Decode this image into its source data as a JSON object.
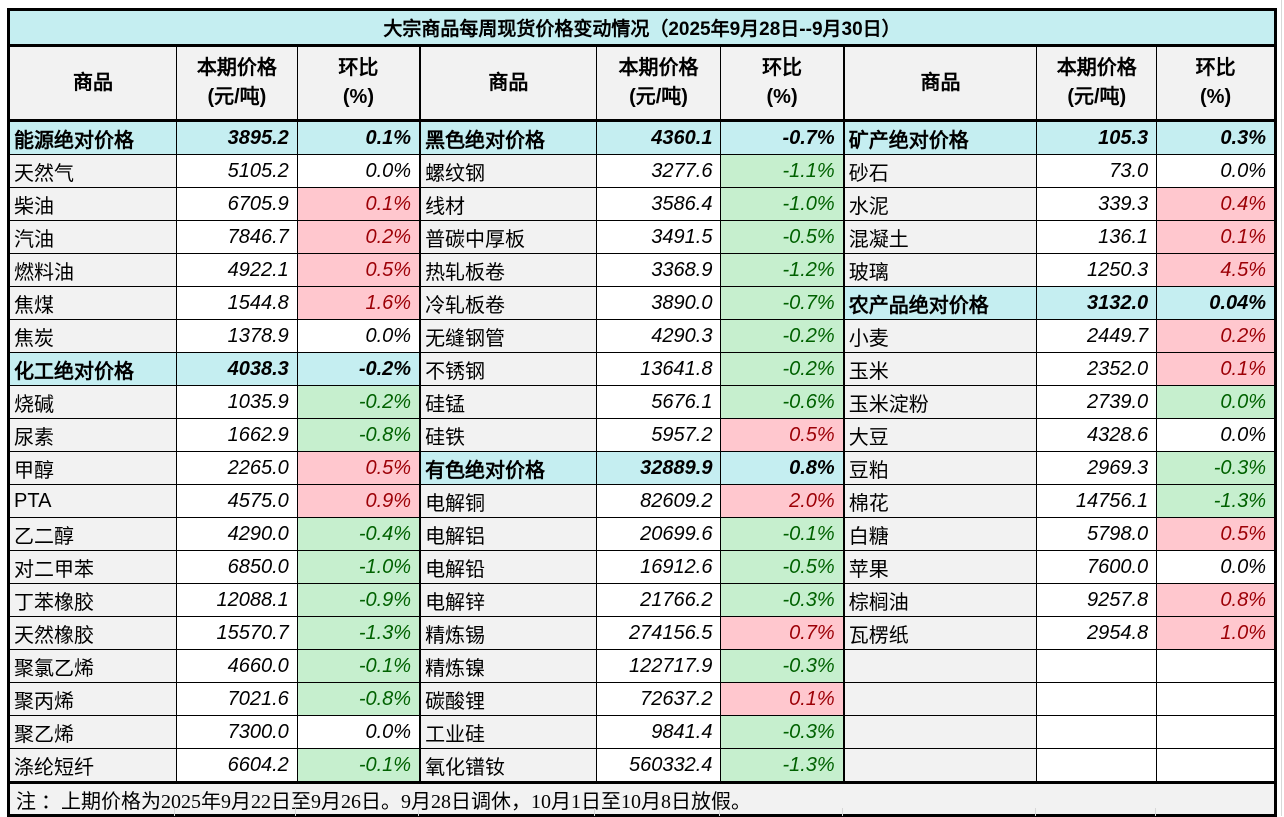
{
  "chart_data": {
    "type": "table",
    "title": "大宗商品每周现货价格变动情况（2025年9月28日--9月30日）",
    "note": "注 ：上期价格为2025年9月22日至9月26日。9月28日调休，10月1日至10月8日放假。",
    "columns": {
      "commodity": "商品",
      "price_l1": "本期价格",
      "price_l2": "(元/吨)",
      "pct_l1": "环比",
      "pct_l2": "(%)"
    },
    "legend": {
      "up_style": "positive change: pink background, dark red text",
      "down_style": "negative change: green background, dark green text",
      "section_style": "aggregate index rows: cyan background, bold"
    },
    "groups": [
      {
        "rows": [
          {
            "name": "能源绝对价格",
            "price": "3895.2",
            "pct": "0.1%",
            "type": "section"
          },
          {
            "name": "天然气",
            "price": "5105.2",
            "pct": "0.0%",
            "style": "flat"
          },
          {
            "name": "柴油",
            "price": "6705.9",
            "pct": "0.1%",
            "style": "up"
          },
          {
            "name": "汽油",
            "price": "7846.7",
            "pct": "0.2%",
            "style": "up"
          },
          {
            "name": "燃料油",
            "price": "4922.1",
            "pct": "0.5%",
            "style": "up"
          },
          {
            "name": "焦煤",
            "price": "1544.8",
            "pct": "1.6%",
            "style": "up"
          },
          {
            "name": "焦炭",
            "price": "1378.9",
            "pct": "0.0%",
            "style": "flat"
          },
          {
            "name": "化工绝对价格",
            "price": "4038.3",
            "pct": "-0.2%",
            "type": "section"
          },
          {
            "name": "烧碱",
            "price": "1035.9",
            "pct": "-0.2%",
            "style": "down"
          },
          {
            "name": "尿素",
            "price": "1662.9",
            "pct": "-0.8%",
            "style": "down"
          },
          {
            "name": "甲醇",
            "price": "2265.0",
            "pct": "0.5%",
            "style": "up"
          },
          {
            "name": "PTA",
            "price": "4575.0",
            "pct": "0.9%",
            "style": "up"
          },
          {
            "name": "乙二醇",
            "price": "4290.0",
            "pct": "-0.4%",
            "style": "down"
          },
          {
            "name": "对二甲苯",
            "price": "6850.0",
            "pct": "-1.0%",
            "style": "down"
          },
          {
            "name": "丁苯橡胶",
            "price": "12088.1",
            "pct": "-0.9%",
            "style": "down"
          },
          {
            "name": "天然橡胶",
            "price": "15570.7",
            "pct": "-1.3%",
            "style": "down"
          },
          {
            "name": "聚氯乙烯",
            "price": "4660.0",
            "pct": "-0.1%",
            "style": "down"
          },
          {
            "name": "聚丙烯",
            "price": "7021.6",
            "pct": "-0.8%",
            "style": "down"
          },
          {
            "name": "聚乙烯",
            "price": "7300.0",
            "pct": "0.0%",
            "style": "flat"
          },
          {
            "name": "涤纶短纤",
            "price": "6604.2",
            "pct": "-0.1%",
            "style": "down"
          }
        ]
      },
      {
        "rows": [
          {
            "name": "黑色绝对价格",
            "price": "4360.1",
            "pct": "-0.7%",
            "type": "section"
          },
          {
            "name": "螺纹钢",
            "price": "3277.6",
            "pct": "-1.1%",
            "style": "down"
          },
          {
            "name": "线材",
            "price": "3586.4",
            "pct": "-1.0%",
            "style": "down"
          },
          {
            "name": "普碳中厚板",
            "price": "3491.5",
            "pct": "-0.5%",
            "style": "down"
          },
          {
            "name": "热轧板卷",
            "price": "3368.9",
            "pct": "-1.2%",
            "style": "down"
          },
          {
            "name": "冷轧板卷",
            "price": "3890.0",
            "pct": "-0.7%",
            "style": "down"
          },
          {
            "name": "无缝钢管",
            "price": "4290.3",
            "pct": "-0.2%",
            "style": "down"
          },
          {
            "name": "不锈钢",
            "price": "13641.8",
            "pct": "-0.2%",
            "style": "down"
          },
          {
            "name": "硅锰",
            "price": "5676.1",
            "pct": "-0.6%",
            "style": "down"
          },
          {
            "name": "硅铁",
            "price": "5957.2",
            "pct": "0.5%",
            "style": "up"
          },
          {
            "name": "有色绝对价格",
            "price": "32889.9",
            "pct": "0.8%",
            "type": "section"
          },
          {
            "name": "电解铜",
            "price": "82609.2",
            "pct": "2.0%",
            "style": "up"
          },
          {
            "name": "电解铝",
            "price": "20699.6",
            "pct": "-0.1%",
            "style": "down"
          },
          {
            "name": "电解铅",
            "price": "16912.6",
            "pct": "-0.5%",
            "style": "down"
          },
          {
            "name": "电解锌",
            "price": "21766.2",
            "pct": "-0.3%",
            "style": "down"
          },
          {
            "name": "精炼锡",
            "price": "274156.5",
            "pct": "0.7%",
            "style": "up"
          },
          {
            "name": "精炼镍",
            "price": "122717.9",
            "pct": "-0.3%",
            "style": "down"
          },
          {
            "name": "碳酸锂",
            "price": "72637.2",
            "pct": "0.1%",
            "style": "up"
          },
          {
            "name": "工业硅",
            "price": "9841.4",
            "pct": "-0.3%",
            "style": "down"
          },
          {
            "name": "氧化镨钕",
            "price": "560332.4",
            "pct": "-1.3%",
            "style": "down"
          }
        ]
      },
      {
        "rows": [
          {
            "name": "矿产绝对价格",
            "price": "105.3",
            "pct": "0.3%",
            "type": "section"
          },
          {
            "name": "砂石",
            "price": "73.0",
            "pct": "0.0%",
            "style": "flat"
          },
          {
            "name": "水泥",
            "price": "339.3",
            "pct": "0.4%",
            "style": "up"
          },
          {
            "name": "混凝土",
            "price": "136.1",
            "pct": "0.1%",
            "style": "up"
          },
          {
            "name": "玻璃",
            "price": "1250.3",
            "pct": "4.5%",
            "style": "up"
          },
          {
            "name": "农产品绝对价格",
            "price": "3132.0",
            "pct": "0.04%",
            "type": "section"
          },
          {
            "name": "小麦",
            "price": "2449.7",
            "pct": "0.2%",
            "style": "up"
          },
          {
            "name": "玉米",
            "price": "2352.0",
            "pct": "0.1%",
            "style": "up"
          },
          {
            "name": "玉米淀粉",
            "price": "2739.0",
            "pct": "0.0%",
            "style": "down"
          },
          {
            "name": "大豆",
            "price": "4328.6",
            "pct": "0.0%",
            "style": "flat"
          },
          {
            "name": "豆粕",
            "price": "2969.3",
            "pct": "-0.3%",
            "style": "down"
          },
          {
            "name": "棉花",
            "price": "14756.1",
            "pct": "-1.3%",
            "style": "down"
          },
          {
            "name": "白糖",
            "price": "5798.0",
            "pct": "0.5%",
            "style": "up"
          },
          {
            "name": "苹果",
            "price": "7600.0",
            "pct": "0.0%",
            "style": "flat"
          },
          {
            "name": "棕榈油",
            "price": "9257.8",
            "pct": "0.8%",
            "style": "up"
          },
          {
            "name": "瓦楞纸",
            "price": "2954.8",
            "pct": "1.0%",
            "style": "up"
          },
          {
            "name": "",
            "price": "",
            "pct": "",
            "style": "empty"
          },
          {
            "name": "",
            "price": "",
            "pct": "",
            "style": "empty"
          },
          {
            "name": "",
            "price": "",
            "pct": "",
            "style": "empty"
          },
          {
            "name": "",
            "price": "",
            "pct": "",
            "style": "empty"
          }
        ]
      }
    ]
  },
  "colors": {
    "section_bg": "#c5eef1",
    "label_bg": "#f2f2f2",
    "up_bg": "#ffc7ce",
    "up_text": "#9c0006",
    "down_bg": "#c6efce",
    "down_text": "#006100",
    "border": "#000000"
  }
}
